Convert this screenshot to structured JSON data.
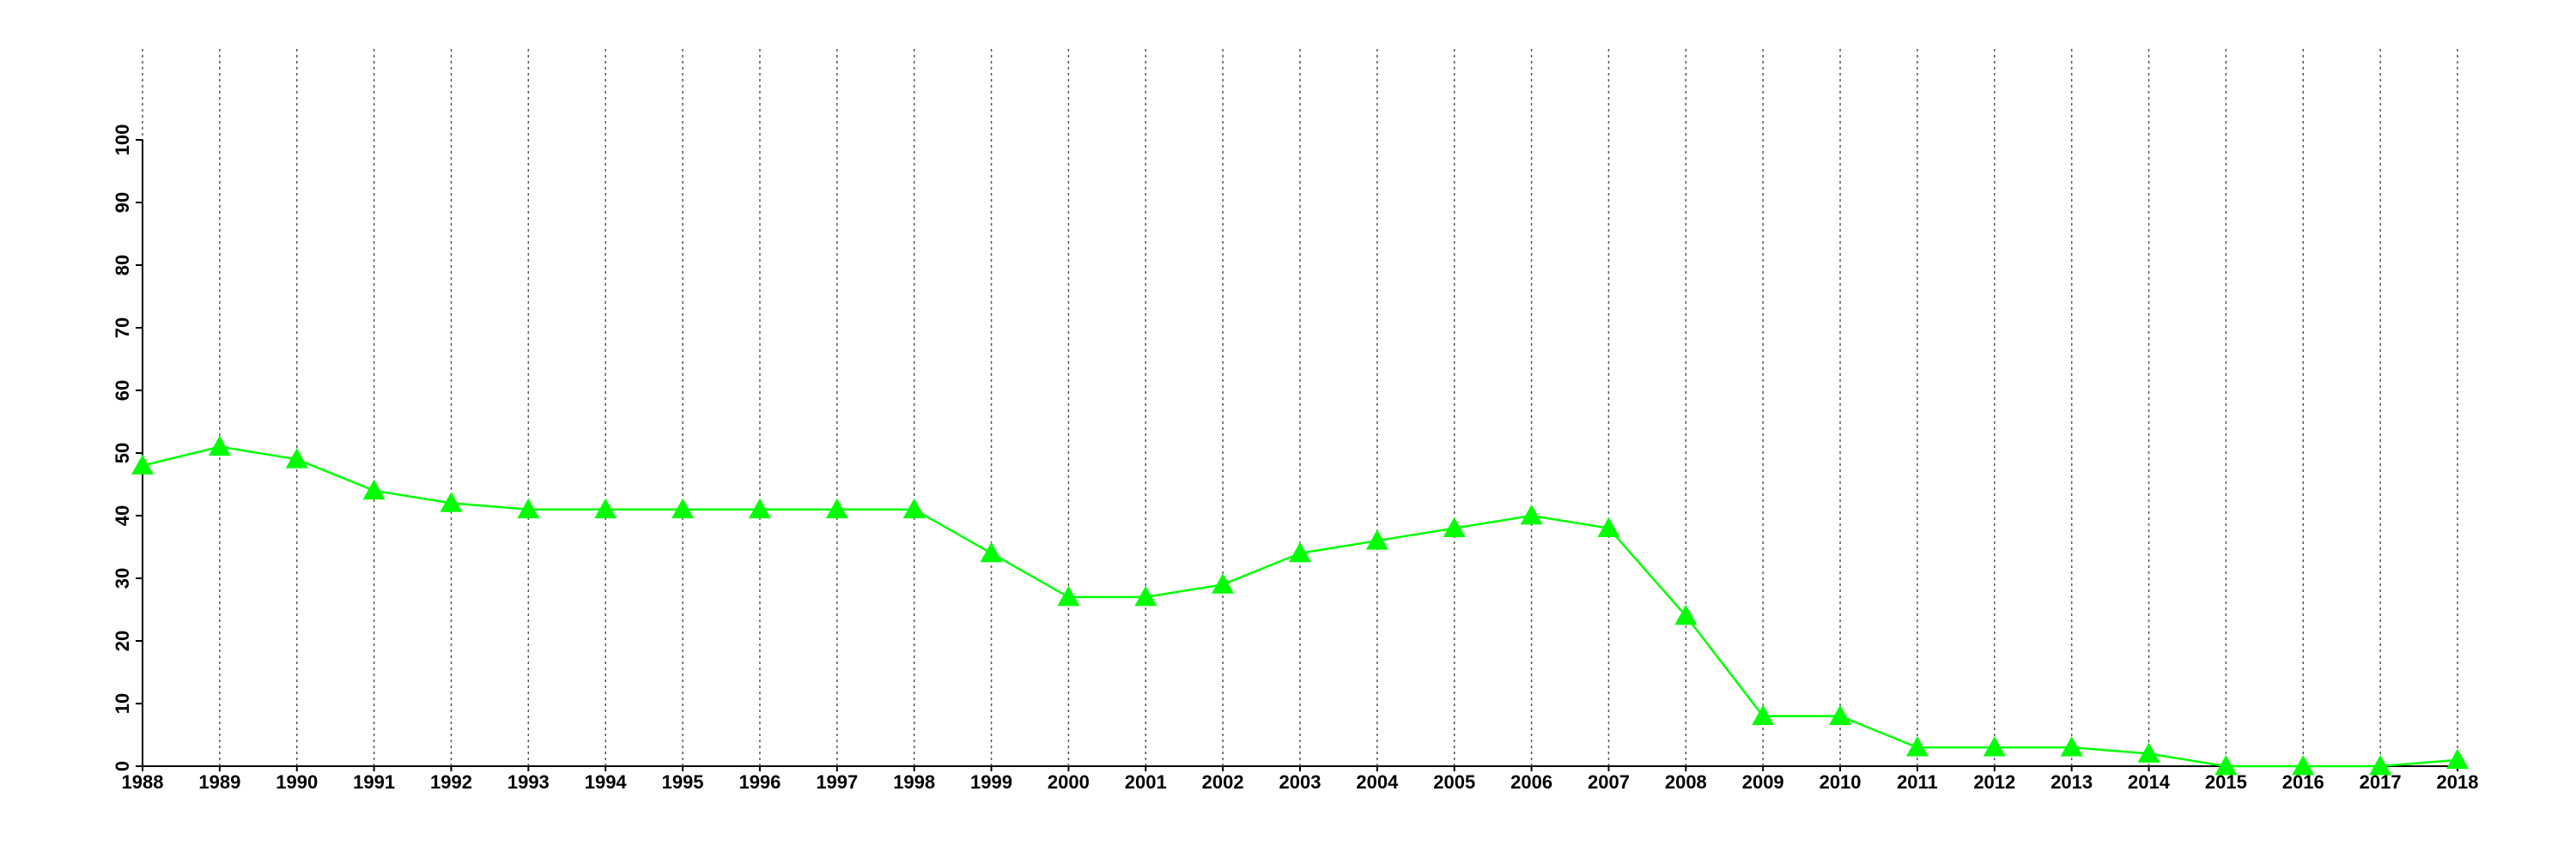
{
  "chart_data": {
    "type": "line",
    "x": [
      1988,
      1989,
      1990,
      1991,
      1992,
      1993,
      1994,
      1995,
      1996,
      1997,
      1998,
      1999,
      2000,
      2001,
      2002,
      2003,
      2004,
      2005,
      2006,
      2007,
      2008,
      2009,
      2010,
      2011,
      2012,
      2013,
      2014,
      2015,
      2016,
      2017,
      2018
    ],
    "values": [
      48,
      51,
      49,
      44,
      42,
      41,
      41,
      41,
      41,
      41,
      41,
      34,
      27,
      27,
      29,
      34,
      36,
      38,
      40,
      38,
      24,
      8,
      8,
      3,
      3,
      3,
      2,
      0,
      0,
      0,
      1
    ],
    "color": "#00ff00",
    "marker": "triangle",
    "xlim": [
      1988,
      2018
    ],
    "xticks": [
      1988,
      1989,
      1990,
      1991,
      1992,
      1993,
      1994,
      1995,
      1996,
      1997,
      1998,
      1999,
      2000,
      2001,
      2002,
      2003,
      2004,
      2005,
      2006,
      2007,
      2008,
      2009,
      2010,
      2011,
      2012,
      2013,
      2014,
      2015,
      2016,
      2017,
      2018
    ],
    "ylim": [
      0,
      100
    ],
    "yticks": [
      0,
      10,
      20,
      30,
      40,
      50,
      60,
      70,
      80,
      90,
      100
    ],
    "grid": "x"
  }
}
